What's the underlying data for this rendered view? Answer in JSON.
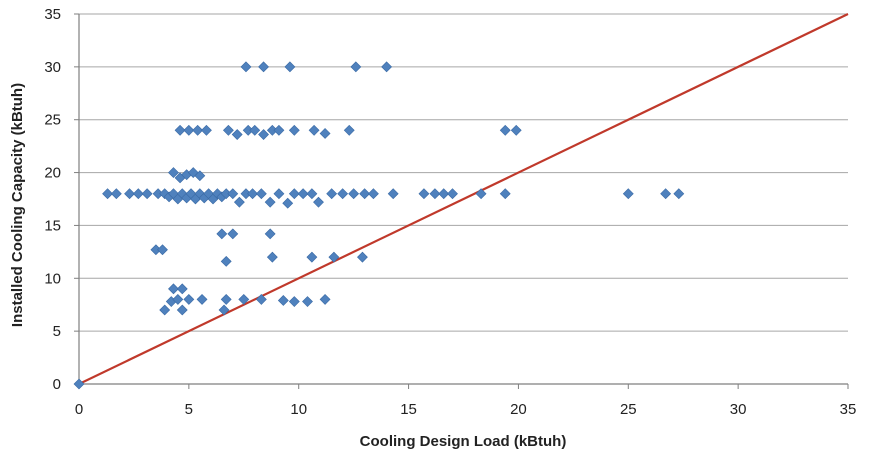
{
  "chart_data": {
    "type": "scatter",
    "title": "",
    "xlabel": "Cooling Design Load (kBtuh)",
    "ylabel": "Installed Cooling Capacity (kBtuh)",
    "xlim": [
      0,
      35
    ],
    "ylim": [
      0,
      35
    ],
    "x_ticks": [
      "0",
      "5",
      "10",
      "15",
      "20",
      "25",
      "30",
      "35"
    ],
    "y_ticks": [
      "0",
      "5",
      "10",
      "15",
      "20",
      "25",
      "30",
      "35"
    ],
    "grid": "horizontal",
    "legend": "none",
    "marker_color": "#4f81bd",
    "line_color": "#c0392b",
    "reference_line": {
      "x": [
        0,
        35
      ],
      "y": [
        0,
        35
      ]
    },
    "series": [
      {
        "marker": "diamond",
        "points": [
          [
            0,
            0
          ],
          [
            1.3,
            18
          ],
          [
            1.7,
            18
          ],
          [
            2.3,
            18
          ],
          [
            2.7,
            18
          ],
          [
            3.1,
            18
          ],
          [
            3.6,
            18
          ],
          [
            3.9,
            18
          ],
          [
            4.1,
            17.7
          ],
          [
            4.3,
            18
          ],
          [
            4.5,
            17.5
          ],
          [
            4.7,
            18
          ],
          [
            4.9,
            17.6
          ],
          [
            5.1,
            18
          ],
          [
            5.3,
            17.5
          ],
          [
            5.5,
            18
          ],
          [
            5.7,
            17.6
          ],
          [
            5.9,
            18
          ],
          [
            6.1,
            17.5
          ],
          [
            6.3,
            18
          ],
          [
            6.5,
            17.7
          ],
          [
            6.7,
            18
          ],
          [
            7.0,
            18
          ],
          [
            7.3,
            17.2
          ],
          [
            7.6,
            18
          ],
          [
            7.9,
            18
          ],
          [
            8.3,
            18
          ],
          [
            8.7,
            17.2
          ],
          [
            9.1,
            18
          ],
          [
            9.5,
            17.1
          ],
          [
            9.8,
            18
          ],
          [
            10.2,
            18
          ],
          [
            10.6,
            18
          ],
          [
            10.9,
            17.2
          ],
          [
            11.5,
            18
          ],
          [
            12.0,
            18
          ],
          [
            12.5,
            18
          ],
          [
            13.0,
            18
          ],
          [
            13.4,
            18
          ],
          [
            14.3,
            18
          ],
          [
            15.7,
            18
          ],
          [
            16.2,
            18
          ],
          [
            16.6,
            18
          ],
          [
            17.0,
            18
          ],
          [
            18.3,
            18
          ],
          [
            19.4,
            18
          ],
          [
            25.0,
            18
          ],
          [
            26.7,
            18
          ],
          [
            27.3,
            18
          ],
          [
            4.3,
            20
          ],
          [
            4.6,
            19.5
          ],
          [
            4.9,
            19.8
          ],
          [
            5.2,
            20
          ],
          [
            5.5,
            19.7
          ],
          [
            4.6,
            24
          ],
          [
            5.0,
            24
          ],
          [
            5.4,
            24
          ],
          [
            5.8,
            24
          ],
          [
            6.8,
            24
          ],
          [
            7.2,
            23.6
          ],
          [
            7.7,
            24
          ],
          [
            8.0,
            24
          ],
          [
            8.4,
            23.6
          ],
          [
            8.8,
            24
          ],
          [
            9.1,
            24
          ],
          [
            9.8,
            24
          ],
          [
            10.7,
            24
          ],
          [
            11.2,
            23.7
          ],
          [
            12.3,
            24
          ],
          [
            19.4,
            24
          ],
          [
            19.9,
            24
          ],
          [
            7.6,
            30
          ],
          [
            8.4,
            30
          ],
          [
            9.6,
            30
          ],
          [
            12.6,
            30
          ],
          [
            14.0,
            30
          ],
          [
            3.5,
            12.7
          ],
          [
            3.8,
            12.7
          ],
          [
            6.5,
            14.2
          ],
          [
            7.0,
            14.2
          ],
          [
            8.7,
            14.2
          ],
          [
            6.7,
            11.6
          ],
          [
            8.8,
            12
          ],
          [
            10.6,
            12
          ],
          [
            11.6,
            12
          ],
          [
            12.9,
            12
          ],
          [
            3.9,
            7
          ],
          [
            4.2,
            7.8
          ],
          [
            4.5,
            8
          ],
          [
            4.7,
            7
          ],
          [
            5.0,
            8
          ],
          [
            5.6,
            8
          ],
          [
            6.6,
            7
          ],
          [
            6.7,
            8
          ],
          [
            7.5,
            8
          ],
          [
            8.3,
            8
          ],
          [
            9.3,
            7.9
          ],
          [
            9.8,
            7.8
          ],
          [
            10.4,
            7.8
          ],
          [
            11.2,
            8
          ],
          [
            4.3,
            9
          ],
          [
            4.7,
            9
          ]
        ]
      }
    ]
  }
}
